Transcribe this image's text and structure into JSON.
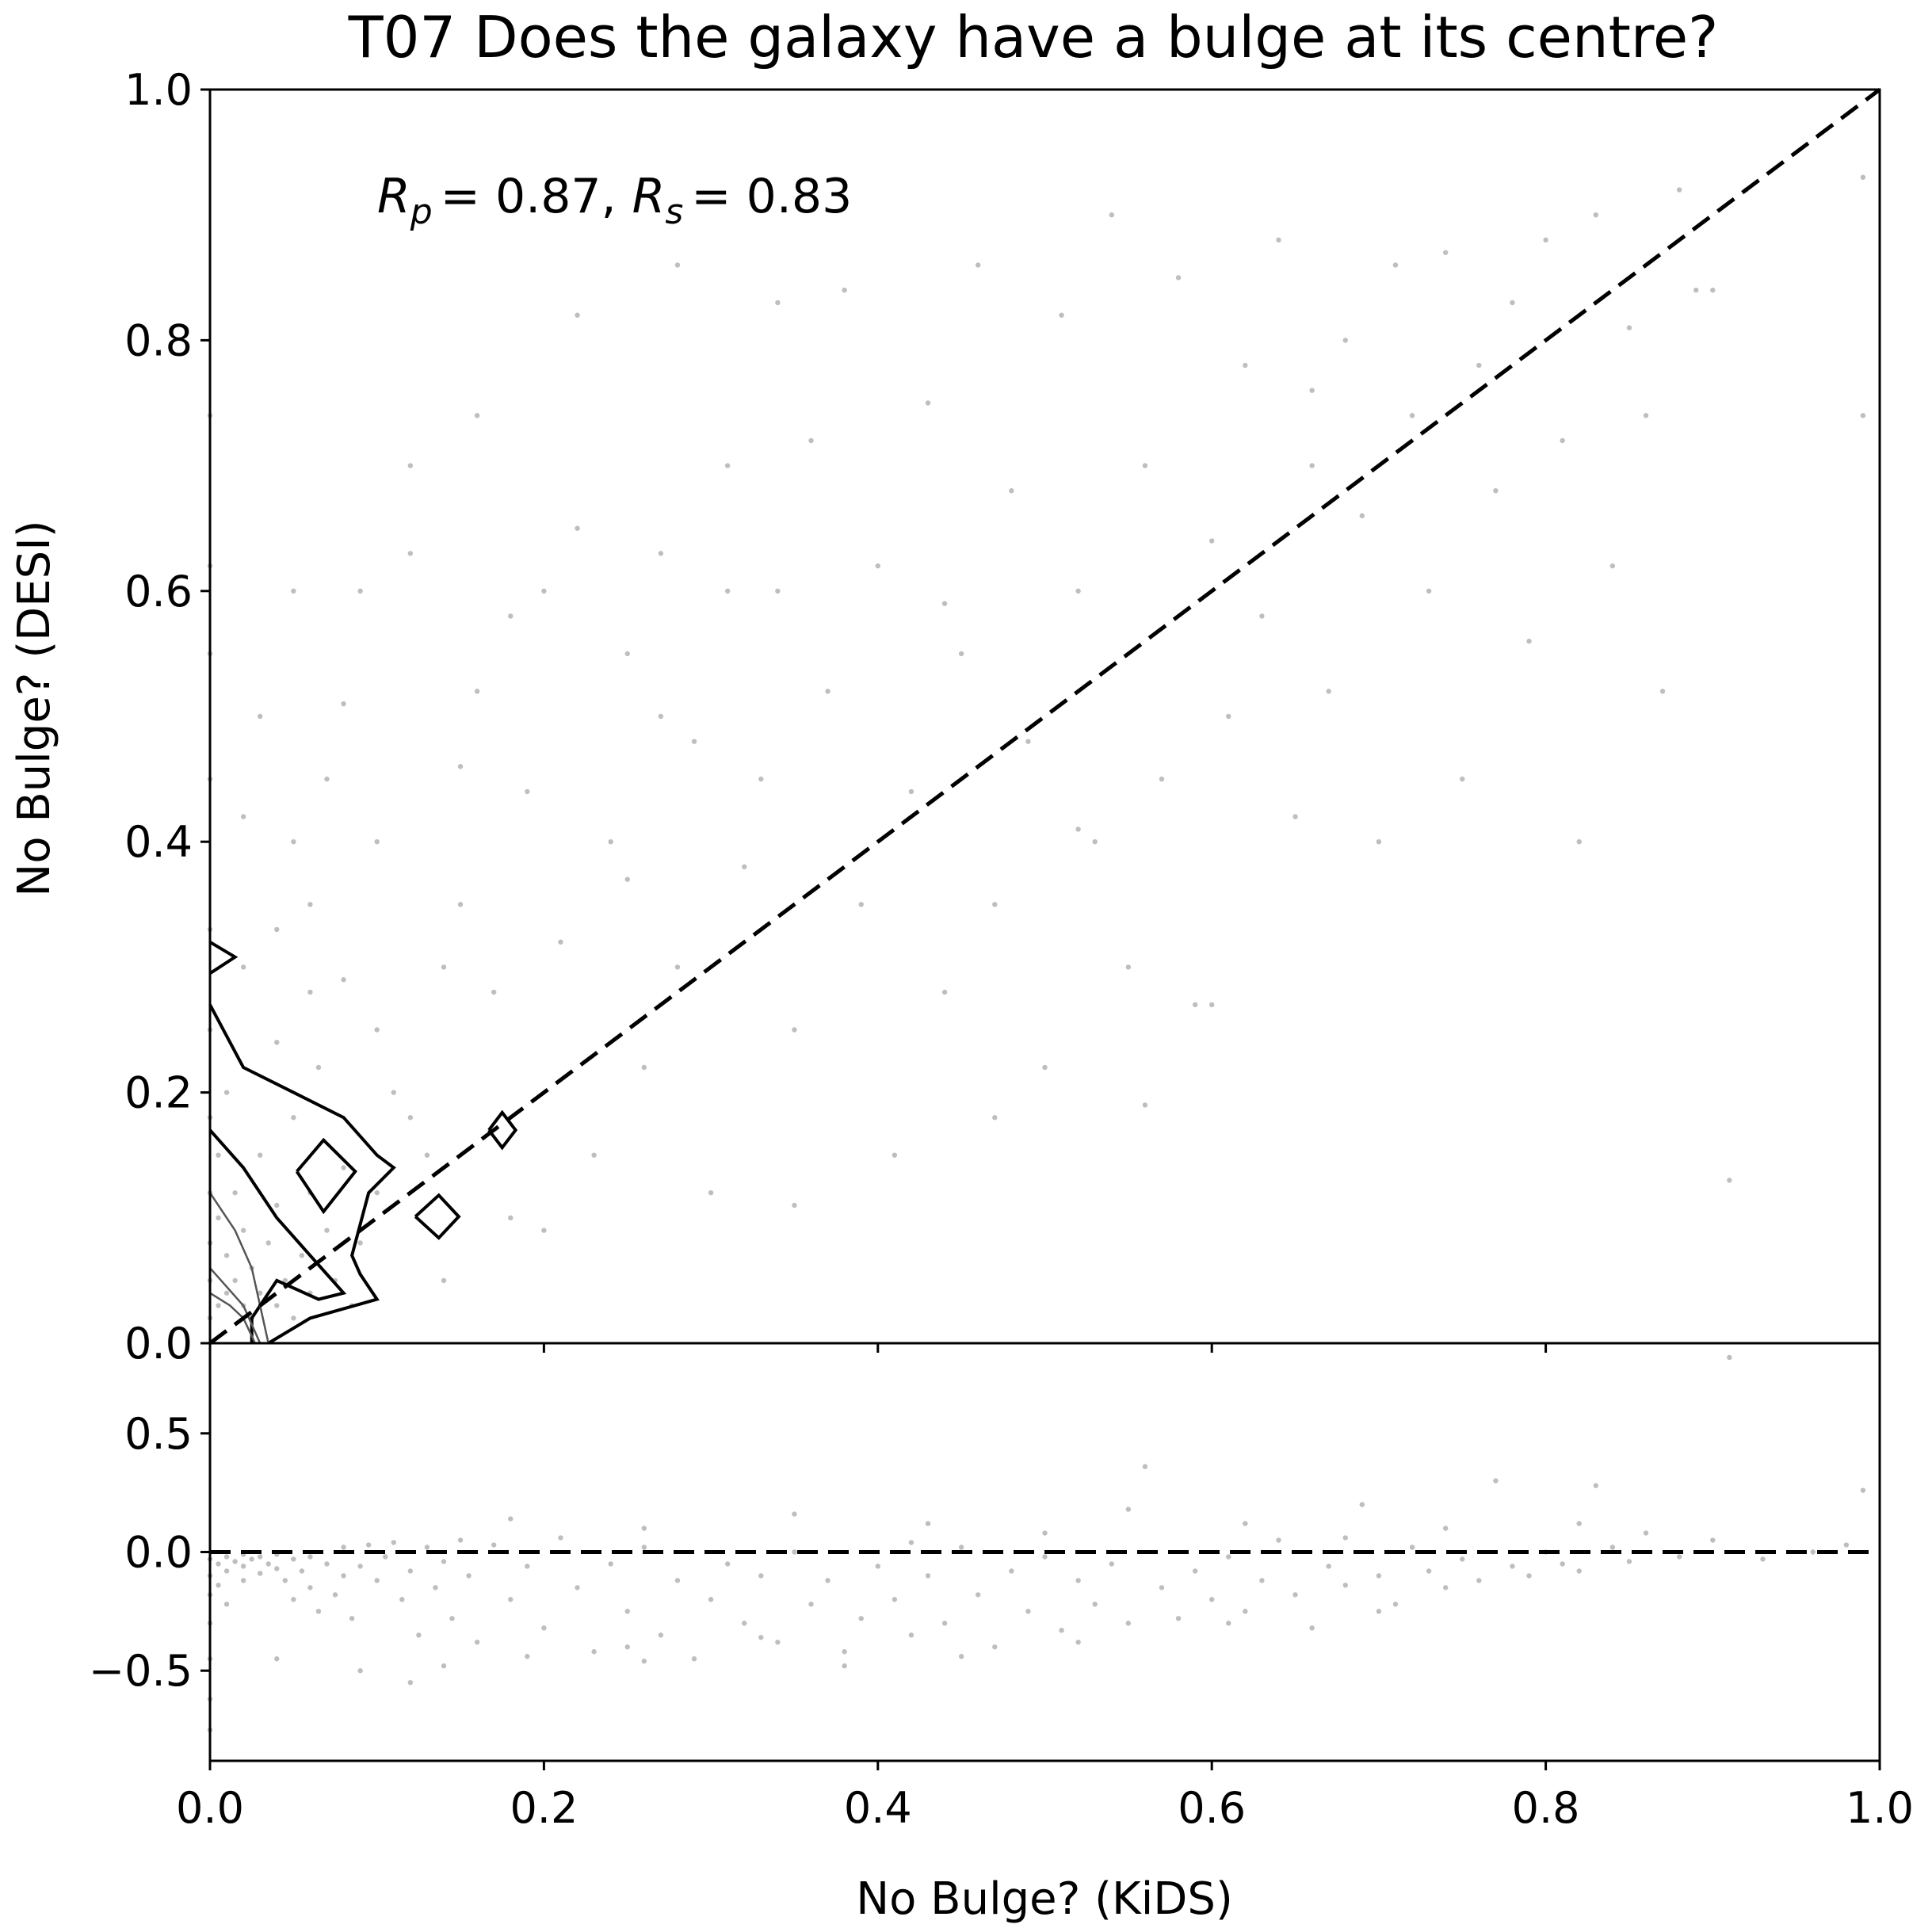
{
  "chart_data": {
    "type": "scatter",
    "title": "T07 Does the galaxy have a bulge at its centre?",
    "xlabel": "No Bulge? (KiDS)",
    "ylabel": "No Bulge? (DESI)",
    "annotation": {
      "rp_symbol": "R",
      "rp_sub": "p",
      "rp_value": "= 0.87,",
      "rs_symbol": "R",
      "rs_sub": "s",
      "rs_value": "= 0.83"
    },
    "panels": {
      "main": {
        "xlim": [
          0,
          1
        ],
        "ylim": [
          0,
          1
        ],
        "xticks": [
          "0.0",
          "0.2",
          "0.4",
          "0.6",
          "0.8",
          "1.0"
        ],
        "yticks": [
          "0.0",
          "0.2",
          "0.4",
          "0.6",
          "0.8",
          "1.0"
        ],
        "reference_line": {
          "style": "dashed",
          "from": [
            0,
            0
          ],
          "to": [
            1,
            1
          ]
        }
      },
      "residual": {
        "xlim": [
          0,
          1
        ],
        "ylim": [
          -0.88,
          0.88
        ],
        "yticks": [
          "0.5",
          "0.0",
          "−0.5"
        ],
        "reference_line": {
          "style": "dashed",
          "y": 0
        }
      }
    },
    "point_color": "#888888",
    "line_color": "#000000",
    "grid": false,
    "legend": "none",
    "scatter_main": [
      [
        0.0,
        0.02
      ],
      [
        0.0,
        0.05
      ],
      [
        0.0,
        0.08
      ],
      [
        0.0,
        0.12
      ],
      [
        0.0,
        0.18
      ],
      [
        0.0,
        0.25
      ],
      [
        0.0,
        0.33
      ],
      [
        0.0,
        0.45
      ],
      [
        0.0,
        0.55
      ],
      [
        0.0,
        0.62
      ],
      [
        0.0,
        0.74
      ],
      [
        0.005,
        0.03
      ],
      [
        0.005,
        0.1
      ],
      [
        0.005,
        0.15
      ],
      [
        0.01,
        0.04
      ],
      [
        0.01,
        0.07
      ],
      [
        0.01,
        0.2
      ],
      [
        0.015,
        0.05
      ],
      [
        0.015,
        0.12
      ],
      [
        0.02,
        0.03
      ],
      [
        0.02,
        0.09
      ],
      [
        0.025,
        0.02
      ],
      [
        0.025,
        0.06
      ],
      [
        0.03,
        0.04
      ],
      [
        0.03,
        0.15
      ],
      [
        0.035,
        0.08
      ],
      [
        0.04,
        0.03
      ],
      [
        0.04,
        0.11
      ],
      [
        0.045,
        0.05
      ],
      [
        0.05,
        0.02
      ],
      [
        0.05,
        0.18
      ],
      [
        0.055,
        0.07
      ],
      [
        0.06,
        0.04
      ],
      [
        0.06,
        0.12
      ],
      [
        0.065,
        0.22
      ],
      [
        0.07,
        0.09
      ],
      [
        0.075,
        0.05
      ],
      [
        0.08,
        0.14
      ],
      [
        0.085,
        0.03
      ],
      [
        0.09,
        0.08
      ],
      [
        0.02,
        0.3
      ],
      [
        0.04,
        0.33
      ],
      [
        0.06,
        0.35
      ],
      [
        0.08,
        0.29
      ],
      [
        0.1,
        0.25
      ],
      [
        0.05,
        0.4
      ],
      [
        0.07,
        0.45
      ],
      [
        0.09,
        0.6
      ],
      [
        0.11,
        0.2
      ],
      [
        0.12,
        0.7
      ],
      [
        0.13,
        0.15
      ],
      [
        0.14,
        0.05
      ],
      [
        0.15,
        0.35
      ],
      [
        0.16,
        0.52
      ],
      [
        0.17,
        0.28
      ],
      [
        0.18,
        0.1
      ],
      [
        0.19,
        0.44
      ],
      [
        0.2,
        0.6
      ],
      [
        0.21,
        0.32
      ],
      [
        0.22,
        0.65
      ],
      [
        0.23,
        0.15
      ],
      [
        0.24,
        0.4
      ],
      [
        0.25,
        0.55
      ],
      [
        0.26,
        0.22
      ],
      [
        0.27,
        0.63
      ],
      [
        0.28,
        0.3
      ],
      [
        0.29,
        0.48
      ],
      [
        0.3,
        0.12
      ],
      [
        0.31,
        0.7
      ],
      [
        0.32,
        0.38
      ],
      [
        0.33,
        0.45
      ],
      [
        0.34,
        0.6
      ],
      [
        0.35,
        0.25
      ],
      [
        0.36,
        0.72
      ],
      [
        0.37,
        0.52
      ],
      [
        0.38,
        0.84
      ],
      [
        0.39,
        0.35
      ],
      [
        0.4,
        0.62
      ],
      [
        0.41,
        0.15
      ],
      [
        0.42,
        0.44
      ],
      [
        0.43,
        0.75
      ],
      [
        0.44,
        0.28
      ],
      [
        0.45,
        0.55
      ],
      [
        0.46,
        0.86
      ],
      [
        0.47,
        0.35
      ],
      [
        0.48,
        0.68
      ],
      [
        0.49,
        0.48
      ],
      [
        0.5,
        0.22
      ],
      [
        0.51,
        0.82
      ],
      [
        0.52,
        0.6
      ],
      [
        0.53,
        0.4
      ],
      [
        0.54,
        0.9
      ],
      [
        0.55,
        0.3
      ],
      [
        0.56,
        0.7
      ],
      [
        0.57,
        0.45
      ],
      [
        0.58,
        0.85
      ],
      [
        0.59,
        0.27
      ],
      [
        0.6,
        0.64
      ],
      [
        0.61,
        0.5
      ],
      [
        0.62,
        0.78
      ],
      [
        0.63,
        0.58
      ],
      [
        0.64,
        0.88
      ],
      [
        0.65,
        0.42
      ],
      [
        0.66,
        0.7
      ],
      [
        0.67,
        0.52
      ],
      [
        0.68,
        0.8
      ],
      [
        0.69,
        0.66
      ],
      [
        0.7,
        0.4
      ],
      [
        0.71,
        0.86
      ],
      [
        0.72,
        0.74
      ],
      [
        0.73,
        0.6
      ],
      [
        0.74,
        0.87
      ],
      [
        0.75,
        0.45
      ],
      [
        0.76,
        0.78
      ],
      [
        0.77,
        0.68
      ],
      [
        0.78,
        0.83
      ],
      [
        0.79,
        0.56
      ],
      [
        0.8,
        0.88
      ],
      [
        0.81,
        0.72
      ],
      [
        0.82,
        0.4
      ],
      [
        0.83,
        0.9
      ],
      [
        0.84,
        0.62
      ],
      [
        0.85,
        0.81
      ],
      [
        0.86,
        0.74
      ],
      [
        0.87,
        0.52
      ],
      [
        0.88,
        0.92
      ],
      [
        0.89,
        0.84
      ],
      [
        0.9,
        0.84
      ],
      [
        0.91,
        0.13
      ],
      [
        0.92,
        0.92
      ],
      [
        0.99,
        0.74
      ],
      [
        0.99,
        0.93
      ],
      [
        0.56,
        0.19
      ],
      [
        0.47,
        0.18
      ],
      [
        0.35,
        0.11
      ],
      [
        0.2,
        0.09
      ],
      [
        0.6,
        0.27
      ],
      [
        0.52,
        0.41
      ],
      [
        0.44,
        0.59
      ],
      [
        0.66,
        0.76
      ],
      [
        0.34,
        0.83
      ],
      [
        0.28,
        0.86
      ],
      [
        0.22,
        0.82
      ],
      [
        0.16,
        0.74
      ],
      [
        0.1,
        0.4
      ],
      [
        0.15,
        0.46
      ],
      [
        0.25,
        0.37
      ],
      [
        0.18,
        0.58
      ],
      [
        0.27,
        0.5
      ],
      [
        0.31,
        0.6
      ],
      [
        0.05,
        0.6
      ],
      [
        0.08,
        0.51
      ],
      [
        0.03,
        0.5
      ],
      [
        0.12,
        0.63
      ],
      [
        0.02,
        0.42
      ],
      [
        0.04,
        0.24
      ],
      [
        0.06,
        0.28
      ],
      [
        0.1,
        0.12
      ],
      [
        0.12,
        0.18
      ],
      [
        0.14,
        0.3
      ]
    ],
    "scatter_residual": [
      [
        0.0,
        -0.03
      ],
      [
        0.0,
        -0.1
      ],
      [
        0.0,
        -0.18
      ],
      [
        0.0,
        -0.3
      ],
      [
        0.0,
        -0.45
      ],
      [
        0.0,
        -0.62
      ],
      [
        0.0,
        -0.75
      ],
      [
        0.005,
        -0.05
      ],
      [
        0.005,
        -0.14
      ],
      [
        0.01,
        -0.02
      ],
      [
        0.01,
        -0.08
      ],
      [
        0.01,
        -0.22
      ],
      [
        0.015,
        -0.04
      ],
      [
        0.02,
        -0.01
      ],
      [
        0.02,
        -0.06
      ],
      [
        0.02,
        -0.12
      ],
      [
        0.025,
        -0.03
      ],
      [
        0.03,
        -0.02
      ],
      [
        0.03,
        -0.09
      ],
      [
        0.035,
        -0.05
      ],
      [
        0.04,
        -0.01
      ],
      [
        0.04,
        -0.07
      ],
      [
        0.045,
        -0.12
      ],
      [
        0.05,
        -0.03
      ],
      [
        0.05,
        -0.2
      ],
      [
        0.055,
        -0.08
      ],
      [
        0.06,
        -0.02
      ],
      [
        0.06,
        -0.15
      ],
      [
        0.065,
        -0.25
      ],
      [
        0.07,
        -0.05
      ],
      [
        0.075,
        -0.18
      ],
      [
        0.08,
        -0.1
      ],
      [
        0.08,
        0.02
      ],
      [
        0.085,
        -0.28
      ],
      [
        0.09,
        -0.06
      ],
      [
        0.095,
        0.03
      ],
      [
        0.1,
        -0.12
      ],
      [
        0.105,
        -0.02
      ],
      [
        0.11,
        0.04
      ],
      [
        0.115,
        -0.2
      ],
      [
        0.12,
        -0.08
      ],
      [
        0.125,
        -0.35
      ],
      [
        0.13,
        0.02
      ],
      [
        0.135,
        -0.15
      ],
      [
        0.14,
        -0.04
      ],
      [
        0.145,
        -0.28
      ],
      [
        0.15,
        0.05
      ],
      [
        0.155,
        -0.1
      ],
      [
        0.16,
        -0.38
      ],
      [
        0.17,
        0.03
      ],
      [
        0.18,
        -0.2
      ],
      [
        0.19,
        -0.06
      ],
      [
        0.2,
        -0.32
      ],
      [
        0.21,
        0.06
      ],
      [
        0.22,
        -0.15
      ],
      [
        0.23,
        -0.42
      ],
      [
        0.24,
        -0.05
      ],
      [
        0.25,
        -0.25
      ],
      [
        0.26,
        0.02
      ],
      [
        0.27,
        -0.35
      ],
      [
        0.28,
        -0.12
      ],
      [
        0.29,
        -0.45
      ],
      [
        0.3,
        -0.2
      ],
      [
        0.31,
        -0.05
      ],
      [
        0.32,
        -0.3
      ],
      [
        0.33,
        -0.1
      ],
      [
        0.34,
        -0.38
      ],
      [
        0.35,
        0.0
      ],
      [
        0.36,
        -0.22
      ],
      [
        0.37,
        -0.12
      ],
      [
        0.38,
        -0.42
      ],
      [
        0.39,
        -0.28
      ],
      [
        0.4,
        -0.06
      ],
      [
        0.41,
        -0.2
      ],
      [
        0.42,
        -0.35
      ],
      [
        0.43,
        -0.1
      ],
      [
        0.44,
        -0.3
      ],
      [
        0.45,
        0.02
      ],
      [
        0.46,
        -0.18
      ],
      [
        0.47,
        -0.4
      ],
      [
        0.48,
        -0.08
      ],
      [
        0.49,
        -0.25
      ],
      [
        0.5,
        -0.02
      ],
      [
        0.51,
        -0.33
      ],
      [
        0.52,
        -0.12
      ],
      [
        0.53,
        -0.22
      ],
      [
        0.54,
        -0.05
      ],
      [
        0.55,
        -0.3
      ],
      [
        0.56,
        0.36
      ],
      [
        0.57,
        -0.15
      ],
      [
        0.58,
        -0.28
      ],
      [
        0.59,
        -0.08
      ],
      [
        0.6,
        -0.2
      ],
      [
        0.61,
        -0.02
      ],
      [
        0.62,
        -0.25
      ],
      [
        0.63,
        -0.12
      ],
      [
        0.64,
        0.05
      ],
      [
        0.65,
        -0.18
      ],
      [
        0.66,
        -0.32
      ],
      [
        0.67,
        -0.06
      ],
      [
        0.68,
        -0.14
      ],
      [
        0.69,
        0.2
      ],
      [
        0.7,
        -0.1
      ],
      [
        0.71,
        -0.22
      ],
      [
        0.72,
        0.02
      ],
      [
        0.73,
        -0.08
      ],
      [
        0.74,
        -0.15
      ],
      [
        0.75,
        -0.03
      ],
      [
        0.76,
        -0.12
      ],
      [
        0.77,
        0.3
      ],
      [
        0.78,
        -0.06
      ],
      [
        0.79,
        -0.1
      ],
      [
        0.8,
        0.0
      ],
      [
        0.81,
        -0.05
      ],
      [
        0.82,
        -0.08
      ],
      [
        0.83,
        0.28
      ],
      [
        0.84,
        0.02
      ],
      [
        0.85,
        -0.04
      ],
      [
        0.86,
        0.08
      ],
      [
        0.88,
        -0.02
      ],
      [
        0.9,
        0.05
      ],
      [
        0.91,
        0.82
      ],
      [
        0.93,
        -0.03
      ],
      [
        0.96,
        0.0
      ],
      [
        0.99,
        0.26
      ],
      [
        0.98,
        0.03
      ],
      [
        0.45,
        -0.44
      ],
      [
        0.38,
        -0.48
      ],
      [
        0.33,
        -0.36
      ],
      [
        0.25,
        -0.4
      ],
      [
        0.19,
        -0.44
      ],
      [
        0.14,
        -0.48
      ],
      [
        0.09,
        -0.5
      ],
      [
        0.04,
        -0.45
      ],
      [
        0.12,
        -0.55
      ],
      [
        0.26,
        -0.46
      ],
      [
        0.52,
        -0.38
      ],
      [
        0.61,
        -0.3
      ],
      [
        0.7,
        -0.25
      ],
      [
        0.55,
        0.18
      ],
      [
        0.43,
        0.12
      ],
      [
        0.35,
        0.16
      ],
      [
        0.26,
        0.1
      ],
      [
        0.18,
        0.14
      ],
      [
        0.62,
        0.12
      ],
      [
        0.74,
        0.1
      ],
      [
        0.82,
        0.12
      ],
      [
        0.68,
        0.06
      ],
      [
        0.5,
        0.08
      ],
      [
        0.42,
        0.04
      ]
    ],
    "contours": [
      [
        [
          0.0,
          0.27
        ],
        [
          0.02,
          0.22
        ],
        [
          0.05,
          0.2
        ],
        [
          0.08,
          0.18
        ],
        [
          0.1,
          0.15
        ],
        [
          0.11,
          0.14
        ],
        [
          0.095,
          0.12
        ],
        [
          0.085,
          0.07
        ],
        [
          0.09,
          0.055
        ],
        [
          0.1,
          0.035
        ],
        [
          0.06,
          0.02
        ],
        [
          0.035,
          0.0
        ]
      ],
      [
        [
          0.0,
          0.17
        ],
        [
          0.02,
          0.14
        ],
        [
          0.04,
          0.1
        ],
        [
          0.06,
          0.07
        ],
        [
          0.07,
          0.055
        ],
        [
          0.08,
          0.04
        ],
        [
          0.065,
          0.035
        ],
        [
          0.04,
          0.05
        ],
        [
          0.025,
          0.02
        ],
        [
          0.025,
          0.0
        ]
      ],
      [
        [
          0.0,
          0.12
        ],
        [
          0.015,
          0.09
        ],
        [
          0.025,
          0.06
        ],
        [
          0.03,
          0.03
        ],
        [
          0.035,
          0.0
        ]
      ],
      [
        [
          0.0,
          0.06
        ],
        [
          0.01,
          0.045
        ],
        [
          0.02,
          0.03
        ],
        [
          0.03,
          0.0
        ]
      ],
      [
        [
          0.0,
          0.04
        ],
        [
          0.012,
          0.03
        ],
        [
          0.02,
          0.02
        ],
        [
          0.027,
          0.0
        ]
      ],
      [
        [
          0.052,
          0.137
        ],
        [
          0.068,
          0.162
        ],
        [
          0.087,
          0.137
        ],
        [
          0.068,
          0.105
        ],
        [
          0.052,
          0.137
        ]
      ],
      [
        [
          0.123,
          0.101
        ],
        [
          0.137,
          0.118
        ],
        [
          0.149,
          0.101
        ],
        [
          0.137,
          0.084
        ],
        [
          0.123,
          0.101
        ]
      ],
      [
        [
          0.167,
          0.17
        ],
        [
          0.175,
          0.184
        ],
        [
          0.183,
          0.17
        ],
        [
          0.175,
          0.156
        ],
        [
          0.167,
          0.17
        ]
      ],
      [
        [
          0.0,
          0.32
        ],
        [
          0.015,
          0.308
        ],
        [
          0.0,
          0.295
        ]
      ]
    ]
  }
}
